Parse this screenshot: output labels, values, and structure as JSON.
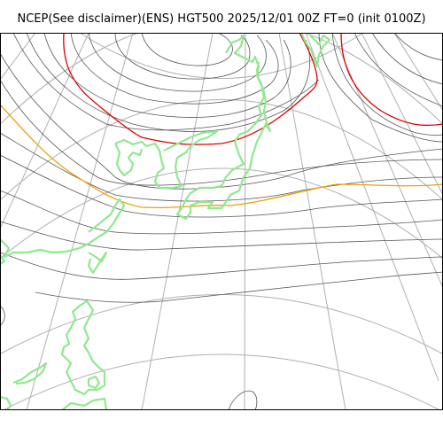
{
  "title": "NCEP(See disclaimer)(ENS) HGT500 2025/12/01 00Z FT=0 (init 0100Z)",
  "colors": {
    "background": "#ffffff",
    "frame": "#000000",
    "graticule": "#b0b0b0",
    "contour": "#555555",
    "contour_highlight_red": "#e00000",
    "contour_highlight_orange": "#f0a000",
    "coastline": "#90e890"
  }
}
